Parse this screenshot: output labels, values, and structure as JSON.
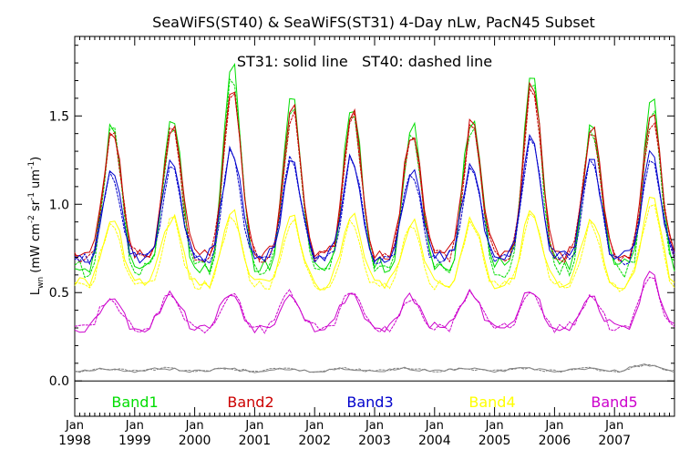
{
  "chart_data": {
    "type": "line",
    "title": "SeaWiFS(ST40) & SeaWiFS(ST31) 4-Day nLw, PacN45 Subset",
    "annotation": "ST31: solid line   ST40: dashed line",
    "ylabel": {
      "base": "L",
      "base_sub": "wn",
      "units_open": " (mW cm",
      "exp1": "-2",
      "units_mid1": " sr",
      "exp2": "-1",
      "units_mid2": " um",
      "exp3": "-1",
      "units_close": ")"
    },
    "xlabel": "",
    "x_range": [
      1998.0,
      2008.0
    ],
    "ylim": [
      -0.2,
      1.95
    ],
    "y_ticks": [
      0.0,
      0.5,
      1.0,
      1.5
    ],
    "y_tick_labels": [
      "0.0",
      "0.5",
      "1.0",
      "1.5"
    ],
    "zero_line": 0.0,
    "x_tick_top_labels": [
      "Jan",
      "Jan",
      "Jan",
      "Jan",
      "Jan",
      "Jan",
      "Jan",
      "Jan",
      "Jan",
      "Jan"
    ],
    "x_tick_bottom_labels": [
      "1998",
      "1999",
      "2000",
      "2001",
      "2002",
      "2003",
      "2004",
      "2005",
      "2006",
      "2007"
    ],
    "x_tick_values": [
      1998,
      1999,
      2000,
      2001,
      2002,
      2003,
      2004,
      2005,
      2006,
      2007
    ],
    "legend_position": "bottom, inside plot",
    "series": [
      {
        "name": "Band1",
        "color": "#00dd00",
        "min": 0.65,
        "max": [
          1.47,
          1.52,
          1.78,
          1.6,
          1.6,
          1.46,
          1.52,
          1.78,
          1.47,
          1.6
        ],
        "peak_phase": 0.63,
        "sharpness": 2.3,
        "noise": 0.05,
        "ratio": 0.97,
        "seed": 11
      },
      {
        "name": "Band2",
        "color": "#cc0000",
        "min": 0.72,
        "max": [
          1.42,
          1.47,
          1.66,
          1.55,
          1.55,
          1.43,
          1.48,
          1.7,
          1.44,
          1.52
        ],
        "peak_phase": 0.63,
        "sharpness": 2.3,
        "noise": 0.04,
        "ratio": 0.98,
        "seed": 23
      },
      {
        "name": "Band3",
        "color": "#0000cc",
        "min": 0.7,
        "max": [
          1.2,
          1.27,
          1.32,
          1.27,
          1.27,
          1.19,
          1.24,
          1.41,
          1.25,
          1.28
        ],
        "peak_phase": 0.62,
        "sharpness": 2.2,
        "noise": 0.04,
        "ratio": 0.985,
        "seed": 37
      },
      {
        "name": "Band4",
        "color": "#ffff00",
        "min": 0.55,
        "max": [
          0.93,
          0.93,
          0.96,
          0.93,
          0.93,
          0.9,
          0.91,
          0.96,
          0.91,
          1.02
        ],
        "peak_phase": 0.62,
        "sharpness": 2.0,
        "noise": 0.035,
        "ratio": 0.98,
        "seed": 41
      },
      {
        "name": "Band5",
        "color": "#cc00cc",
        "min": 0.3,
        "max": [
          0.48,
          0.5,
          0.5,
          0.5,
          0.5,
          0.47,
          0.5,
          0.52,
          0.48,
          0.6
        ],
        "peak_phase": 0.6,
        "sharpness": 1.8,
        "noise": 0.03,
        "ratio": 0.99,
        "seed": 53
      },
      {
        "name": "",
        "color": "#808080",
        "min": 0.055,
        "max": [
          0.07,
          0.07,
          0.07,
          0.07,
          0.07,
          0.07,
          0.07,
          0.07,
          0.07,
          0.09
        ],
        "peak_phase": 0.5,
        "sharpness": 1.0,
        "noise": 0.008,
        "ratio": 1.0,
        "seed": 67
      }
    ]
  }
}
